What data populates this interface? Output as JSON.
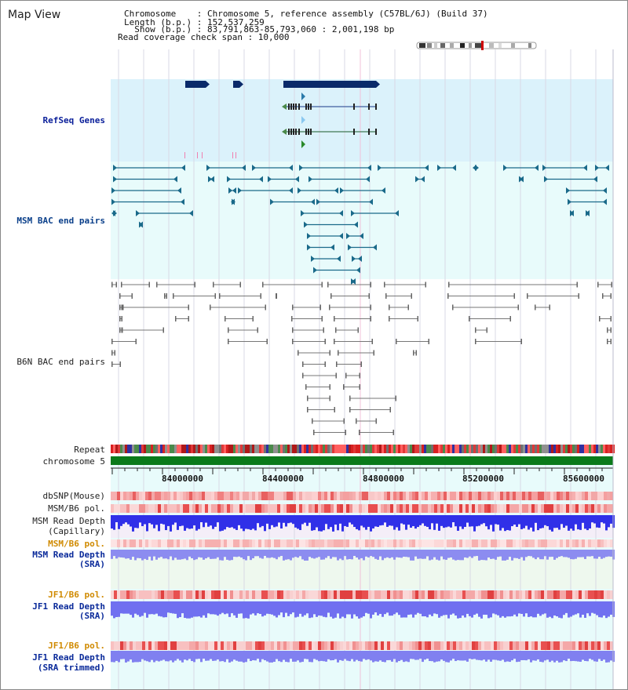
{
  "app": {
    "title": "Map View"
  },
  "header": {
    "chromosome_label": "Chromosome    : Chromosome 5, reference assembly (C57BL/6J) (Build 37)",
    "length_label": "Length (b.p.) : 152,537,259",
    "show_label": "  Show (b.p.) : 83,791,863-85,793,060 : 2,001,198 bp",
    "coverage_label": "Read coverage check span : 10,000"
  },
  "tracks": {
    "refseq": "RefSeq Genes",
    "msm_bac": "MSM BAC end pairs",
    "b6n_bac": "B6N BAC end pairs",
    "repeat": "Repeat",
    "chromosome": "chromosome 5",
    "dbsnp": "dbSNP(Mouse)",
    "msm_b6_pol_1": "MSM/B6 pol.",
    "msm_read_depth_cap_1": "MSM Read Depth",
    "msm_read_depth_cap_2": "(Capillary)",
    "msm_b6_pol_2": "MSM/B6 pol.",
    "msm_read_depth_sra_1": "MSM Read Depth",
    "msm_read_depth_sra_2": "(SRA)",
    "jf1_b6_pol_1": "JF1/B6 pol.",
    "jf1_read_depth_sra_1": "JF1 Read Depth",
    "jf1_read_depth_sra_2": "(SRA)",
    "jf1_b6_pol_2": "JF1/B6 pol.",
    "jf1_read_depth_trim_1": "JF1 Read Depth",
    "jf1_read_depth_trim_2": "(SRA trimmed)"
  },
  "axis": {
    "ticks": [
      "84000000",
      "84400000",
      "84800000",
      "85200000",
      "85600000"
    ]
  },
  "colors": {
    "refseq_bg": "#dbf2fb",
    "msm_bg": "#e8fbfb",
    "track_bg": "#e8fbfb",
    "refseq_gene": "#0a2a6a",
    "msm_feature": "#1a6a8a",
    "b6n_feature": "#777777",
    "chromosome_bar": "#0a7a1a",
    "snp_red": "#e03030",
    "depth_blue": "#2a2ae0",
    "depth_light": "#8888f0"
  }
}
